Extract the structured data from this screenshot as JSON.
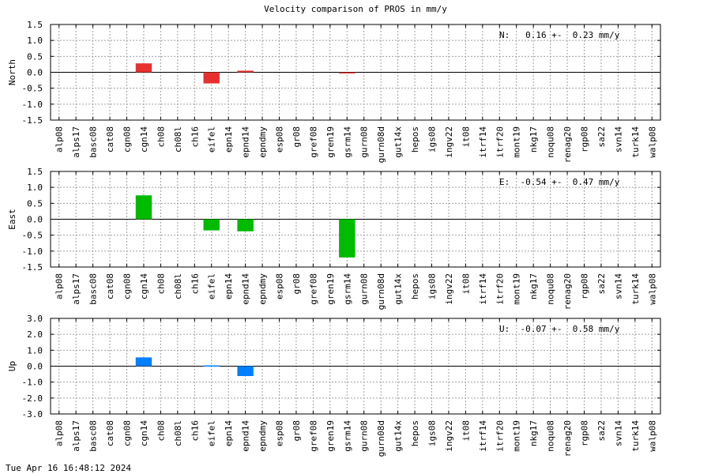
{
  "title": "Velocity comparison of PROS in mm/y",
  "footer": "Tue Apr 16 16:48:12 2024",
  "chart_data": [
    {
      "type": "bar",
      "ylabel": "North",
      "ylim": [
        -1.5,
        1.5
      ],
      "yticks": [
        "1.5",
        "1.0",
        "0.5",
        "0.0",
        "-0.5",
        "-1.0",
        "-1.5"
      ],
      "annotation": "N:   0.16 +-  0.23 mm/y",
      "color": "#e83030",
      "grid": true,
      "categories": [
        "alp08",
        "alps17",
        "basc08",
        "cat08",
        "cgn08",
        "cgn14",
        "ch08",
        "ch08l",
        "ch16",
        "eifel",
        "epn14",
        "epnd14",
        "epndmy",
        "esp08",
        "gr08",
        "gref08",
        "gren19",
        "gsrm14",
        "gurn08",
        "gurn08d",
        "gut14x",
        "hepos",
        "igs08",
        "ingv22",
        "it08",
        "itrf14",
        "itrf20",
        "mont19",
        "nkg17",
        "noqu08",
        "renag20",
        "rgp08",
        "sa22",
        "svn14",
        "turk14",
        "walp08"
      ],
      "values": [
        null,
        null,
        null,
        null,
        null,
        0.28,
        null,
        null,
        null,
        -0.35,
        null,
        0.05,
        null,
        null,
        null,
        null,
        null,
        -0.02,
        null,
        null,
        null,
        null,
        null,
        null,
        null,
        null,
        null,
        null,
        null,
        null,
        null,
        null,
        null,
        null,
        null,
        null
      ]
    },
    {
      "type": "bar",
      "ylabel": "East",
      "ylim": [
        -1.5,
        1.5
      ],
      "yticks": [
        "1.5",
        "1.0",
        "0.5",
        "0.0",
        "-0.5",
        "-1.0",
        "-1.5"
      ],
      "annotation": "E:  -0.54 +-  0.47 mm/y",
      "color": "#00bb00",
      "grid": true,
      "categories": [
        "alp08",
        "alps17",
        "basc08",
        "cat08",
        "cgn08",
        "cgn14",
        "ch08",
        "ch08l",
        "ch16",
        "eifel",
        "epn14",
        "epnd14",
        "epndmy",
        "esp08",
        "gr08",
        "gref08",
        "gren19",
        "gsrm14",
        "gurn08",
        "gurn08d",
        "gut14x",
        "hepos",
        "igs08",
        "ingv22",
        "it08",
        "itrf14",
        "itrf20",
        "mont19",
        "nkg17",
        "noqu08",
        "renag20",
        "rgp08",
        "sa22",
        "svn14",
        "turk14",
        "walp08"
      ],
      "values": [
        null,
        null,
        null,
        null,
        null,
        0.75,
        null,
        null,
        null,
        -0.35,
        null,
        -0.38,
        null,
        null,
        null,
        null,
        null,
        -1.2,
        null,
        null,
        null,
        null,
        null,
        null,
        null,
        null,
        null,
        null,
        null,
        null,
        null,
        null,
        null,
        null,
        null,
        null
      ]
    },
    {
      "type": "bar",
      "ylabel": "Up",
      "ylim": [
        -3.0,
        3.0
      ],
      "yticks": [
        "3.0",
        "2.0",
        "1.0",
        "0.0",
        "-1.0",
        "-2.0",
        "-3.0"
      ],
      "annotation": "U:  -0.07 +-  0.58 mm/y",
      "color": "#0080ff",
      "grid": true,
      "categories": [
        "alp08",
        "alps17",
        "basc08",
        "cat08",
        "cgn08",
        "cgn14",
        "ch08",
        "ch08l",
        "ch16",
        "eifel",
        "epn14",
        "epnd14",
        "epndmy",
        "esp08",
        "gr08",
        "gref08",
        "gren19",
        "gsrm14",
        "gurn08",
        "gurn08d",
        "gut14x",
        "hepos",
        "igs08",
        "ingv22",
        "it08",
        "itrf14",
        "itrf20",
        "mont19",
        "nkg17",
        "noqu08",
        "renag20",
        "rgp08",
        "sa22",
        "svn14",
        "turk14",
        "walp08"
      ],
      "values": [
        null,
        null,
        null,
        null,
        null,
        0.55,
        null,
        null,
        null,
        0.05,
        null,
        -0.62,
        null,
        null,
        null,
        null,
        null,
        null,
        null,
        null,
        null,
        null,
        null,
        null,
        null,
        null,
        null,
        null,
        null,
        null,
        null,
        null,
        null,
        null,
        null,
        null
      ]
    }
  ]
}
